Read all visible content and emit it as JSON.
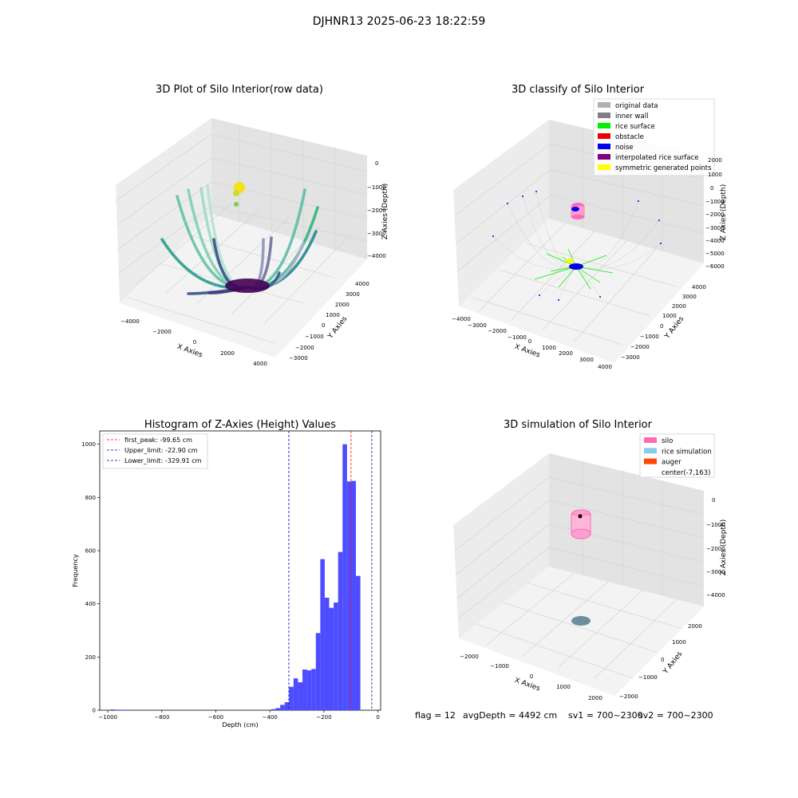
{
  "figure": {
    "suptitle": "DJHNR13 2025-06-23 18:22:59",
    "status": {
      "flag": "flag = 12",
      "avg_depth": "avgDepth = 4492 cm",
      "sv1": "sv1 = 700~2300",
      "sv2": "sv2 = 700~2300"
    }
  },
  "colors": {
    "hist_bar": "#4d4dff",
    "first_peak": "#ff0000",
    "limit_line": "#0000cc",
    "pane_left": "#ececec",
    "pane_right": "#e2e2e2",
    "pane_floor": "#f2f2f2",
    "grid": "#c8c8c8"
  },
  "chart_data": [
    {
      "type": "scatter3d",
      "title": "3D Plot of Silo Interior(row data)",
      "xlabel": "X Axies",
      "ylabel": "Y Axies",
      "zlabel": "Z Axies (Depth)",
      "xlim": [
        -4500,
        4500
      ],
      "ylim": [
        -3500,
        4500
      ],
      "zlim": [
        -4700,
        200
      ],
      "xticks": [
        "−4000",
        "−2000",
        "0",
        "2000",
        "4000"
      ],
      "yticks": [
        "−3000",
        "−2000",
        "−1000",
        "0",
        "1000",
        "2000",
        "3000",
        "4000"
      ],
      "zticks": [
        "0",
        "−1000",
        "−2000",
        "−3000",
        "−4000"
      ],
      "colormap": "viridis",
      "description_series": [
        {
          "name": "scan arcs",
          "values_note": "curved arcs of points converging at center bottom"
        }
      ]
    },
    {
      "type": "scatter3d",
      "title": "3D classify of Silo Interior",
      "xlabel": "X Axies",
      "ylabel": "Y Axies",
      "zlabel": "Z Axies (Depth)",
      "xlim": [
        -4300,
        4300
      ],
      "ylim": [
        -3300,
        4300
      ],
      "zlim": [
        -6300,
        2300
      ],
      "xticks": [
        "−4000",
        "−3000",
        "−2000",
        "−1000",
        "0",
        "1000",
        "2000",
        "3000",
        "4000"
      ],
      "yticks": [
        "−3000",
        "−2000",
        "−1000",
        "0",
        "1000",
        "2000",
        "3000",
        "4000"
      ],
      "zticks": [
        "2000",
        "1000",
        "0",
        "−1000",
        "−2000",
        "−3000",
        "−4000",
        "−5000",
        "−6000"
      ],
      "legend": [
        {
          "label": "original data",
          "color": "#b0b0b0"
        },
        {
          "label": "inner wall",
          "color": "#808080"
        },
        {
          "label": "rice surface",
          "color": "#00ee00"
        },
        {
          "label": "obstacle",
          "color": "#ee0000"
        },
        {
          "label": "noise",
          "color": "#0000ee"
        },
        {
          "label": "interpolated rice surface",
          "color": "#800080"
        },
        {
          "label": "symmetric generated points",
          "color": "#ffff00"
        }
      ]
    },
    {
      "type": "bar",
      "title": "Histogram of Z-Axies (Height) Values",
      "xlabel": "Depth (cm)",
      "ylabel": "Frequency",
      "xlim": [
        -1030,
        10
      ],
      "ylim": [
        0,
        1050
      ],
      "xticks": [
        -1000,
        -800,
        -600,
        -400,
        -200,
        0
      ],
      "yticks": [
        0,
        200,
        400,
        600,
        800,
        1000
      ],
      "bin_width": 16.5,
      "bins": [
        {
          "x": -990,
          "y": 3
        },
        {
          "x": -965,
          "y": 2
        },
        {
          "x": -945,
          "y": 2
        },
        {
          "x": -843,
          "y": 2
        },
        {
          "x": -395,
          "y": 4
        },
        {
          "x": -378.5,
          "y": 8
        },
        {
          "x": -362,
          "y": 20
        },
        {
          "x": -345.5,
          "y": 30
        },
        {
          "x": -329,
          "y": 88
        },
        {
          "x": -312.5,
          "y": 120
        },
        {
          "x": -296,
          "y": 105
        },
        {
          "x": -279.5,
          "y": 153
        },
        {
          "x": -263,
          "y": 150
        },
        {
          "x": -246.5,
          "y": 155
        },
        {
          "x": -230,
          "y": 290
        },
        {
          "x": -213.5,
          "y": 568
        },
        {
          "x": -197,
          "y": 423
        },
        {
          "x": -180.5,
          "y": 385
        },
        {
          "x": -164,
          "y": 405
        },
        {
          "x": -147.5,
          "y": 595
        },
        {
          "x": -131,
          "y": 1000
        },
        {
          "x": -114.5,
          "y": 860
        },
        {
          "x": -98,
          "y": 862
        },
        {
          "x": -81.5,
          "y": 505
        }
      ],
      "vlines": [
        {
          "label": "first_peak: -99.65 cm",
          "x": -99.65,
          "color": "#ff0000"
        },
        {
          "label": "Upper_limit: -22.90 cm",
          "x": -22.9,
          "color": "#0000cc"
        },
        {
          "label": "Lower_limit: -329.91 cm",
          "x": -329.91,
          "color": "#0000cc"
        }
      ]
    },
    {
      "type": "scatter3d",
      "title": "3D simulation of Silo Interior",
      "xlabel": "X Axies",
      "ylabel": "Y Axies",
      "zlabel": "Z Axies (Depth)",
      "xlim": [
        -2600,
        2600
      ],
      "ylim": [
        -2600,
        2600
      ],
      "zlim": [
        -4700,
        200
      ],
      "xticks": [
        "−2000",
        "−1000",
        "0",
        "1000",
        "2000"
      ],
      "yticks": [
        "−2000",
        "−1000",
        "0",
        "1000",
        "2000"
      ],
      "zticks": [
        "0",
        "−1000",
        "−2000",
        "−3000",
        "−4000"
      ],
      "legend": [
        {
          "label": "silo",
          "color": "#ff69b4"
        },
        {
          "label": "rice simulation",
          "color": "#87ceeb"
        },
        {
          "label": "auger",
          "color": "#ff4500"
        },
        {
          "label": "center(-7,163)",
          "color": "#ffffff"
        }
      ]
    }
  ]
}
